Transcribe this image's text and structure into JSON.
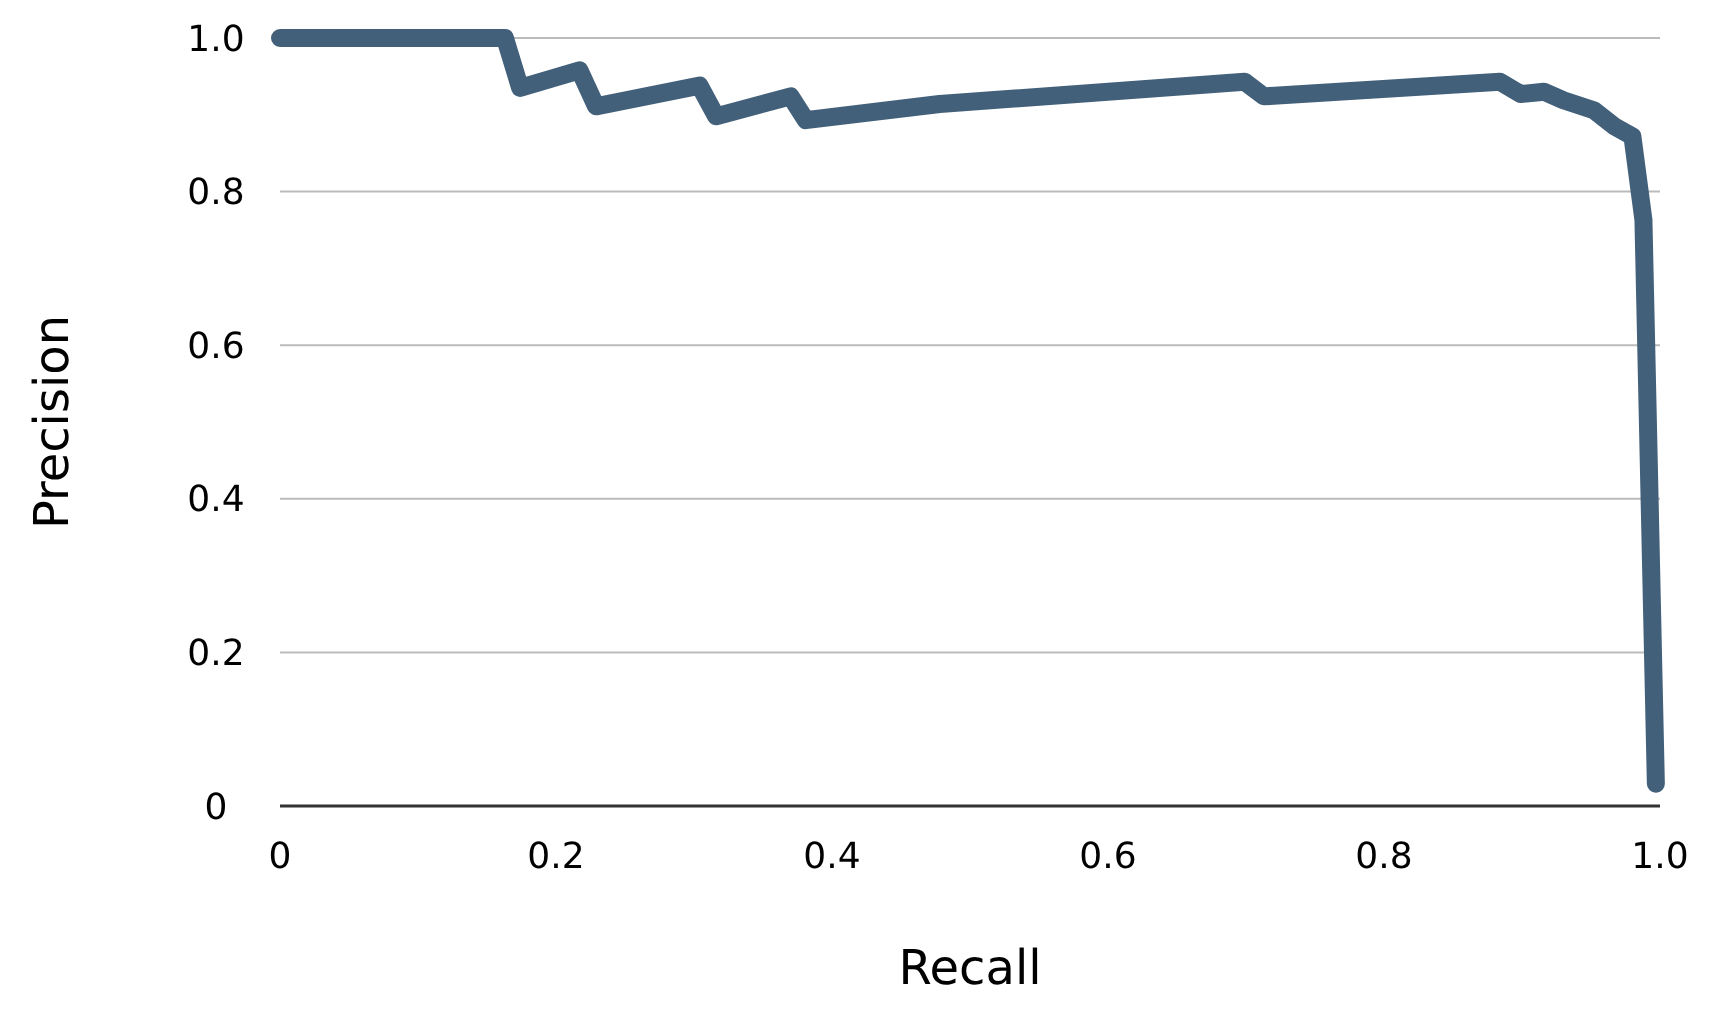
{
  "chart_data": {
    "type": "line",
    "xlabel": "Recall",
    "ylabel": "Precision",
    "x": [
      0,
      0.163,
      0.174,
      0.217,
      0.229,
      0.304,
      0.316,
      0.37,
      0.381,
      0.478,
      0.699,
      0.713,
      0.884,
      0.899,
      0.916,
      0.93,
      0.952,
      0.967,
      0.98,
      0.988,
      0.997
    ],
    "series": [
      {
        "color": "#43607a",
        "values": [
          1.0,
          1.0,
          0.935,
          0.958,
          0.911,
          0.938,
          0.898,
          0.924,
          0.893,
          0.914,
          0.943,
          0.924,
          0.943,
          0.927,
          0.93,
          0.919,
          0.906,
          0.885,
          0.872,
          0.763,
          0.029
        ]
      }
    ],
    "xlim": [
      0,
      1
    ],
    "xticks": [
      0,
      0.2,
      0.4,
      0.6,
      0.8,
      {
        "value": 1,
        "label": "1.0"
      }
    ],
    "ylim": [
      0,
      1
    ],
    "yticks": [
      0,
      0.2,
      0.4,
      0.6,
      0.8,
      {
        "value": 1,
        "label": "1.0"
      }
    ],
    "grid": "y",
    "marker": "none",
    "line_style": "solid"
  }
}
